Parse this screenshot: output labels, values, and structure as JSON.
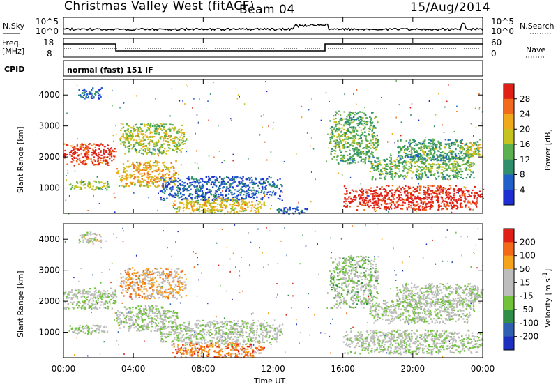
{
  "header": {
    "station": "Christmas Valley West (fitACF)",
    "beam": "Beam 04",
    "date": "15/Aug/2014"
  },
  "side_labels": {
    "nsky": "N.Sky",
    "freq_top": "Freq.",
    "freq_unit": "[MHz]",
    "cpid": "CPID",
    "nsearch": "N.Search",
    "nave": "Nave"
  },
  "strip_ticks": {
    "noise_left": [
      "10^5",
      "10^0"
    ],
    "noise_right": [
      "10^5",
      "10^0"
    ],
    "freq_left": [
      "18",
      "8"
    ],
    "nave_right": [
      "60",
      "0"
    ]
  },
  "cpid_text": "normal (fast) 151 IF",
  "x_axis": {
    "label": "Time UT",
    "ticks": [
      "00:00",
      "04:00",
      "08:00",
      "12:00",
      "16:00",
      "20:00",
      "00:00"
    ]
  },
  "chart_data": [
    {
      "type": "heatmap",
      "name": "power",
      "title": "",
      "xlabel": "Time UT",
      "ylabel": "Slant Range [km]",
      "xlim": [
        0,
        24
      ],
      "ylim": [
        180,
        4500
      ],
      "yticks": [
        "1000",
        "2000",
        "3000",
        "4000"
      ],
      "colorbar_label": "Power [dB]",
      "colorbar_ticks": [
        "4",
        "8",
        "12",
        "16",
        "20",
        "24",
        "28"
      ],
      "colorbar_colors": [
        "#1e2ed2",
        "#2060c8",
        "#2f8f6a",
        "#5cb050",
        "#c6c31e",
        "#f0a91a",
        "#f26a1c",
        "#e01f17"
      ],
      "regions": [
        {
          "t": [
            0.0,
            3.0
          ],
          "r": [
            1750,
            2450
          ],
          "level": 0.85
        },
        {
          "t": [
            0.3,
            2.6
          ],
          "r": [
            950,
            1250
          ],
          "level": 0.45
        },
        {
          "t": [
            0.8,
            2.2
          ],
          "r": [
            3900,
            4250
          ],
          "level": 0.15
        },
        {
          "t": [
            3.0,
            6.5
          ],
          "r": [
            1050,
            1900
          ],
          "level": 0.6
        },
        {
          "t": [
            3.2,
            7.0
          ],
          "r": [
            2100,
            3100
          ],
          "level": 0.45
        },
        {
          "t": [
            5.5,
            12.5
          ],
          "r": [
            600,
            1400
          ],
          "level": 0.12
        },
        {
          "t": [
            6.2,
            11.5
          ],
          "r": [
            200,
            700
          ],
          "level": 0.55
        },
        {
          "t": [
            12.2,
            14.0
          ],
          "r": [
            180,
            400
          ],
          "level": 0.1
        },
        {
          "t": [
            15.2,
            18.0
          ],
          "r": [
            1800,
            3500
          ],
          "level": 0.35
        },
        {
          "t": [
            16.0,
            24.0
          ],
          "r": [
            300,
            1100
          ],
          "level": 0.9
        },
        {
          "t": [
            17.5,
            23.5
          ],
          "r": [
            1300,
            2100
          ],
          "level": 0.35
        },
        {
          "t": [
            19.0,
            23.8
          ],
          "r": [
            1900,
            2600
          ],
          "level": 0.3
        },
        {
          "t": [
            23.0,
            24.0
          ],
          "r": [
            2000,
            2500
          ],
          "level": 0.55
        }
      ]
    },
    {
      "type": "heatmap",
      "name": "velocity",
      "title": "",
      "xlabel": "Time UT",
      "ylabel": "Slant Range [km]",
      "xlim": [
        0,
        24
      ],
      "ylim": [
        180,
        4500
      ],
      "yticks": [
        "1000",
        "2000",
        "3000",
        "4000"
      ],
      "colorbar_label": "Velocity [m s^-1]",
      "colorbar_ticks": [
        "200",
        "100",
        "50",
        "15",
        "-15",
        "-50",
        "-100",
        "-200"
      ],
      "colorbar_colors": [
        "#1c2fbf",
        "#2f5fb0",
        "#2f8f47",
        "#6fc23a",
        "#bdbdbd",
        "#bdbdbd",
        "#f5a31c",
        "#f26a18",
        "#e01f17"
      ],
      "regions": [
        {
          "t": [
            0.0,
            3.0
          ],
          "r": [
            1750,
            2450
          ],
          "level": 0.5
        },
        {
          "t": [
            0.3,
            2.6
          ],
          "r": [
            950,
            1250
          ],
          "level": 0.5
        },
        {
          "t": [
            0.8,
            2.2
          ],
          "r": [
            3900,
            4250
          ],
          "level": 0.55
        },
        {
          "t": [
            3.0,
            6.5
          ],
          "r": [
            1050,
            1900
          ],
          "level": 0.5
        },
        {
          "t": [
            3.2,
            7.0
          ],
          "r": [
            2100,
            3100
          ],
          "level": 0.7
        },
        {
          "t": [
            5.5,
            12.5
          ],
          "r": [
            600,
            1400
          ],
          "level": 0.5
        },
        {
          "t": [
            6.2,
            11.5
          ],
          "r": [
            200,
            700
          ],
          "level": 0.78
        },
        {
          "t": [
            15.2,
            18.0
          ],
          "r": [
            1800,
            3500
          ],
          "level": 0.45
        },
        {
          "t": [
            16.0,
            24.0
          ],
          "r": [
            300,
            1100
          ],
          "level": 0.5
        },
        {
          "t": [
            17.5,
            23.5
          ],
          "r": [
            1300,
            2100
          ],
          "level": 0.5
        },
        {
          "t": [
            19.0,
            23.8
          ],
          "r": [
            1900,
            2600
          ],
          "level": 0.5
        },
        {
          "t": [
            23.0,
            24.0
          ],
          "r": [
            2000,
            2500
          ],
          "level": 0.5
        }
      ]
    }
  ]
}
